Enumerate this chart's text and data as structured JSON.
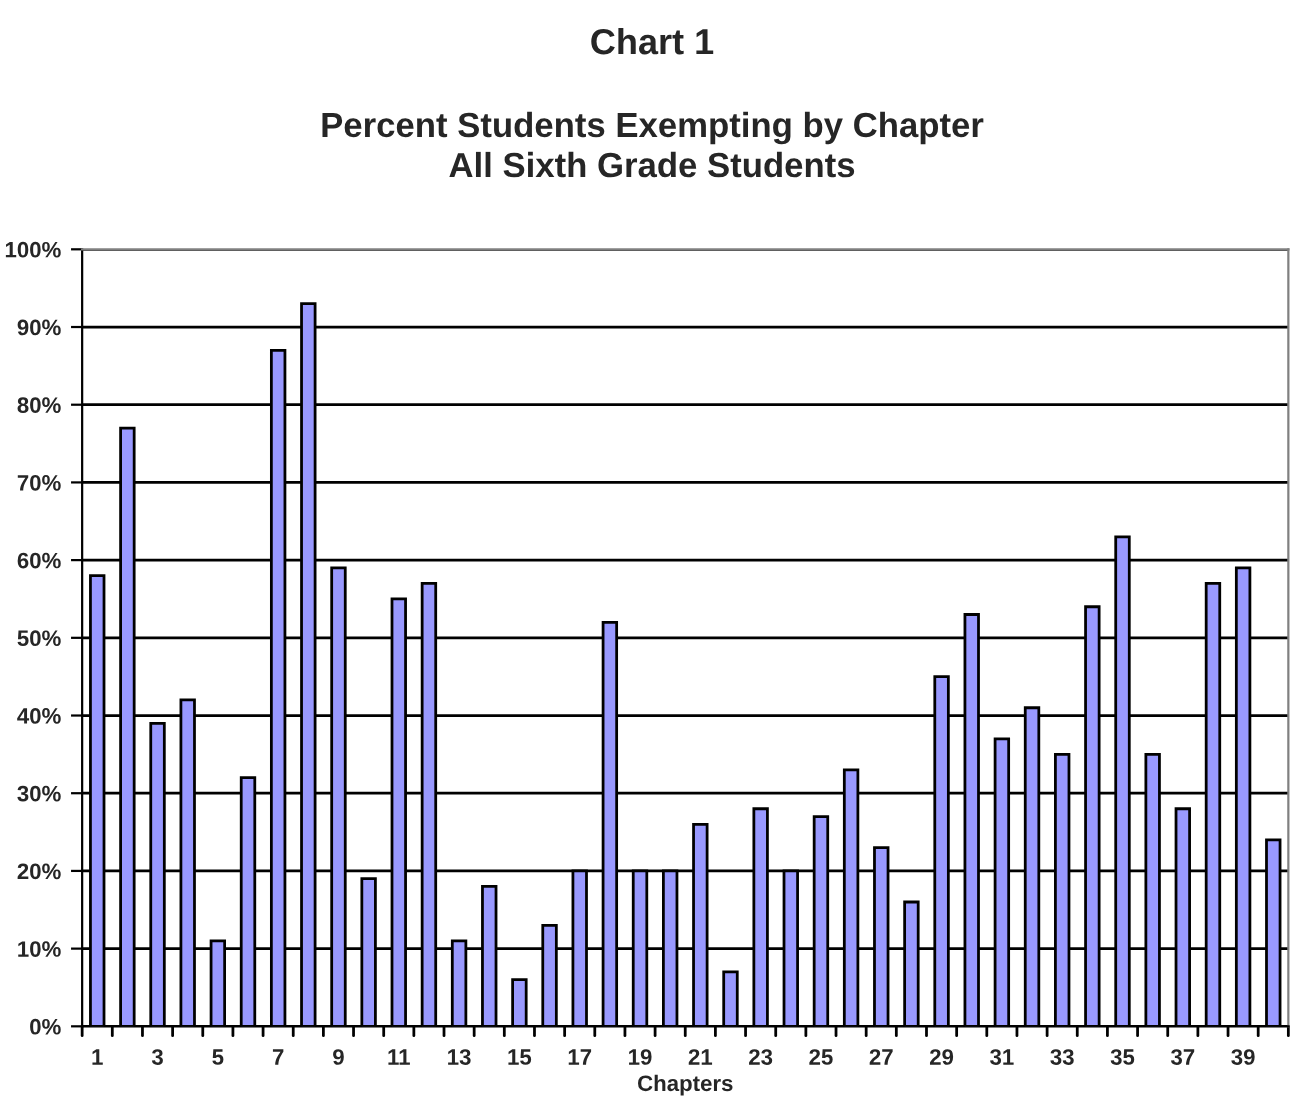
{
  "chart_data": {
    "type": "bar",
    "title": "Chart 1",
    "subtitle": "Percent Students Exempting by Chapter\nAll Sixth Grade Students",
    "xlabel": "Chapters",
    "categories": [
      "1",
      null,
      "3",
      null,
      "5",
      null,
      "7",
      null,
      "9",
      null,
      "11",
      null,
      "13",
      null,
      "15",
      null,
      "17",
      null,
      "19",
      null,
      "21",
      null,
      "23",
      null,
      "25",
      null,
      "27",
      null,
      "29",
      null,
      "31",
      null,
      "33",
      null,
      "35",
      null,
      "37",
      null,
      "39",
      null
    ],
    "values": [
      58,
      77,
      39,
      42,
      11,
      32,
      87,
      93,
      59,
      19,
      55,
      57,
      11,
      18,
      6,
      13,
      20,
      52,
      20,
      20,
      26,
      7,
      28,
      20,
      27,
      33,
      23,
      16,
      45,
      53,
      37,
      41,
      35,
      54,
      63,
      35,
      28,
      57,
      59,
      24
    ],
    "color": "#9999ff",
    "ylim": [
      0,
      100
    ],
    "yticks": [
      {
        "value": 0,
        "label": "0%"
      },
      {
        "value": 10,
        "label": "10%"
      },
      {
        "value": 20,
        "label": "20%"
      },
      {
        "value": 30,
        "label": "30%"
      },
      {
        "value": 40,
        "label": "40%"
      },
      {
        "value": 50,
        "label": "50%"
      },
      {
        "value": 60,
        "label": "60%"
      },
      {
        "value": 70,
        "label": "70%"
      },
      {
        "value": 80,
        "label": "80%"
      },
      {
        "value": 90,
        "label": "90%"
      },
      {
        "value": 100,
        "label": "100%"
      }
    ],
    "grid": "y",
    "legend": false
  }
}
